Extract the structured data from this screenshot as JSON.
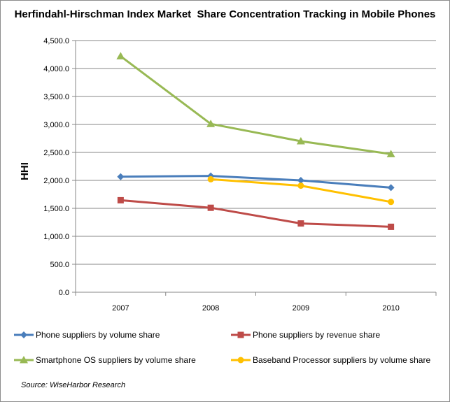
{
  "chart_data": {
    "type": "line",
    "title": "Herfindahl-Hirschman Index Market  Share Concentration Tracking in Mobile Phones",
    "xlabel": "",
    "ylabel": "HHI",
    "categories": [
      "2007",
      "2008",
      "2009",
      "2010"
    ],
    "ylim": [
      0,
      4500
    ],
    "yticks": [
      "0.0",
      "500.0",
      "1,000.0",
      "1,500.0",
      "2,000.0",
      "2,500.0",
      "3,000.0",
      "3,500.0",
      "4,000.0",
      "4,500.0"
    ],
    "grid": "horizontal",
    "legend_position": "bottom",
    "series": [
      {
        "name": "Phone suppliers by volume share",
        "color": "#4a7ebb",
        "marker": "diamond",
        "values": [
          2065,
          2080,
          2000,
          1870
        ]
      },
      {
        "name": "Phone suppliers by revenue share",
        "color": "#be4b48",
        "marker": "square",
        "values": [
          1645,
          1510,
          1230,
          1170
        ]
      },
      {
        "name": "Smartphone OS suppliers  by volume share",
        "color": "#98b954",
        "marker": "triangle",
        "values": [
          4220,
          3010,
          2700,
          2470
        ]
      },
      {
        "name": "Baseband Processor suppliers by volume share",
        "color": "#ffc000",
        "marker": "circle",
        "values": [
          null,
          2020,
          1905,
          1615
        ]
      }
    ]
  },
  "source_note": "Source: WiseHarbor Research"
}
